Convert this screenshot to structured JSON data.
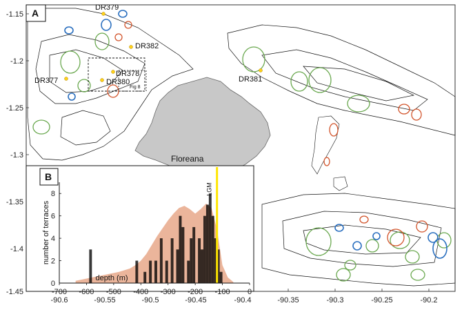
{
  "panel_a_label": "A",
  "panel_b_label": "B",
  "island_label": "Floreana",
  "fig_label": "Fig 8",
  "dredge_labels": [
    "DR379",
    "DR382",
    "DR378",
    "DR380",
    "DR377",
    "DR381"
  ],
  "lon_ticks": [
    "-90.6",
    "-90.55",
    "-90.5",
    "-90.45",
    "-90.4",
    "-90.35",
    "-90.3",
    "-90.25",
    "-90.2"
  ],
  "lat_ticks": [
    "-1.15",
    "-1.2",
    "-1.25",
    "-1.3",
    "-1.35",
    "-1.4",
    "-1.45"
  ],
  "colors": {
    "land": "#c8c8c8",
    "contour": "#111111",
    "terrace_green": "#6aa84f",
    "terrace_blue": "#2a6fbf",
    "terrace_red": "#d2532a",
    "histogram_fill": "#e8a88a",
    "lgm_line": "#ffe600"
  },
  "chart_data": {
    "type": "bar",
    "title": "",
    "xlabel": "depth (m)",
    "ylabel": "number of terraces",
    "xlim": [
      -700,
      0
    ],
    "ylim": [
      0,
      9
    ],
    "x_ticks": [
      "-700",
      "-600",
      "-500",
      "-400",
      "-300",
      "-200",
      "-100",
      "0"
    ],
    "y_ticks": [
      "0",
      "2",
      "4",
      "6",
      "8"
    ],
    "annotation": "LGM",
    "lgm_depth": -120,
    "bar_width": 10,
    "bars_x": [
      -585,
      -415,
      -385,
      -365,
      -345,
      -325,
      -305,
      -285,
      -265,
      -255,
      -245,
      -225,
      -215,
      -205,
      -185,
      -175,
      -165,
      -155,
      -145,
      -135,
      -125,
      -115,
      -105
    ],
    "bars_y": [
      3,
      2,
      1,
      2,
      2,
      4,
      2,
      4,
      3,
      6,
      5,
      2,
      4,
      5,
      4,
      3,
      6,
      7,
      8,
      6,
      4,
      3,
      1
    ],
    "distribution_x": [
      -640,
      -600,
      -560,
      -520,
      -480,
      -440,
      -420,
      -400,
      -380,
      -360,
      -340,
      -320,
      -300,
      -280,
      -260,
      -240,
      -220,
      -200,
      -180,
      -160,
      -140,
      -120,
      -100,
      -80,
      -60
    ],
    "distribution_y": [
      0.2,
      0.4,
      0.6,
      0.8,
      1.0,
      1.3,
      1.6,
      2.0,
      2.6,
      3.4,
      4.2,
      4.9,
      5.6,
      6.2,
      6.7,
      6.9,
      6.6,
      6.2,
      6.6,
      7.1,
      6.7,
      4.8,
      1.6,
      0.5,
      0.1
    ]
  }
}
